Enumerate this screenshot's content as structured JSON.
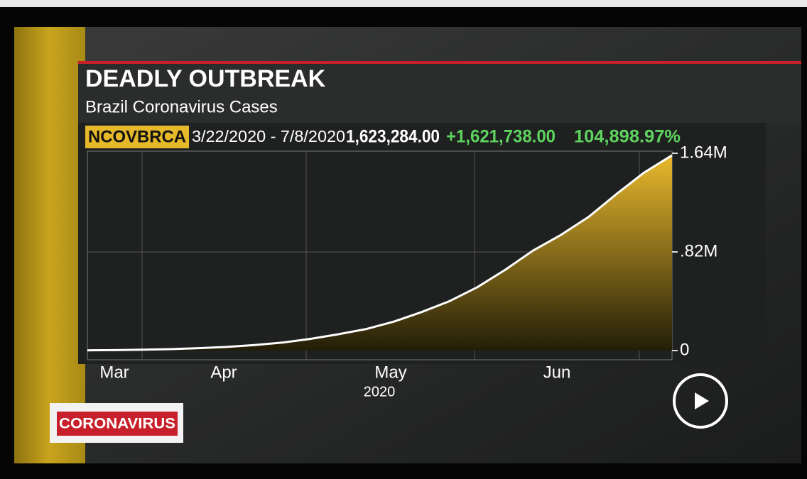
{
  "chart_data": {
    "type": "area",
    "title": "DEADLY OUTBREAK",
    "subtitle": "Brazil Coronavirus Cases",
    "ticker": "NCOVBRCA",
    "date_range": "3/22/2020 - 7/8/2020",
    "last_value": "1,623,284.00",
    "change": "+1,621,738.00",
    "change_pct": "104,898.97%",
    "x_labels": [
      "Mar",
      "Apr",
      "May",
      "Jun"
    ],
    "x_year": "2020",
    "series": [
      {
        "name": "Brazil Coronavirus Cases",
        "color": "#ffffff",
        "fill": "#e9b92c",
        "values": [
          1546,
          3400,
          6900,
          12000,
          20000,
          30000,
          46000,
          66000,
          97000,
          135000,
          178000,
          240000,
          320000,
          410000,
          526000,
          670000,
          830000,
          960000,
          1110000,
          1300000,
          1480000,
          1623284
        ]
      }
    ],
    "ylim": [
      0,
      1640000
    ],
    "yticks": [
      0,
      {
        "value": 820000,
        "label": ".82M"
      },
      {
        "value": 1640000,
        "label": "1.64M"
      }
    ],
    "grid": true
  },
  "badge": "CORONAVIRUS"
}
